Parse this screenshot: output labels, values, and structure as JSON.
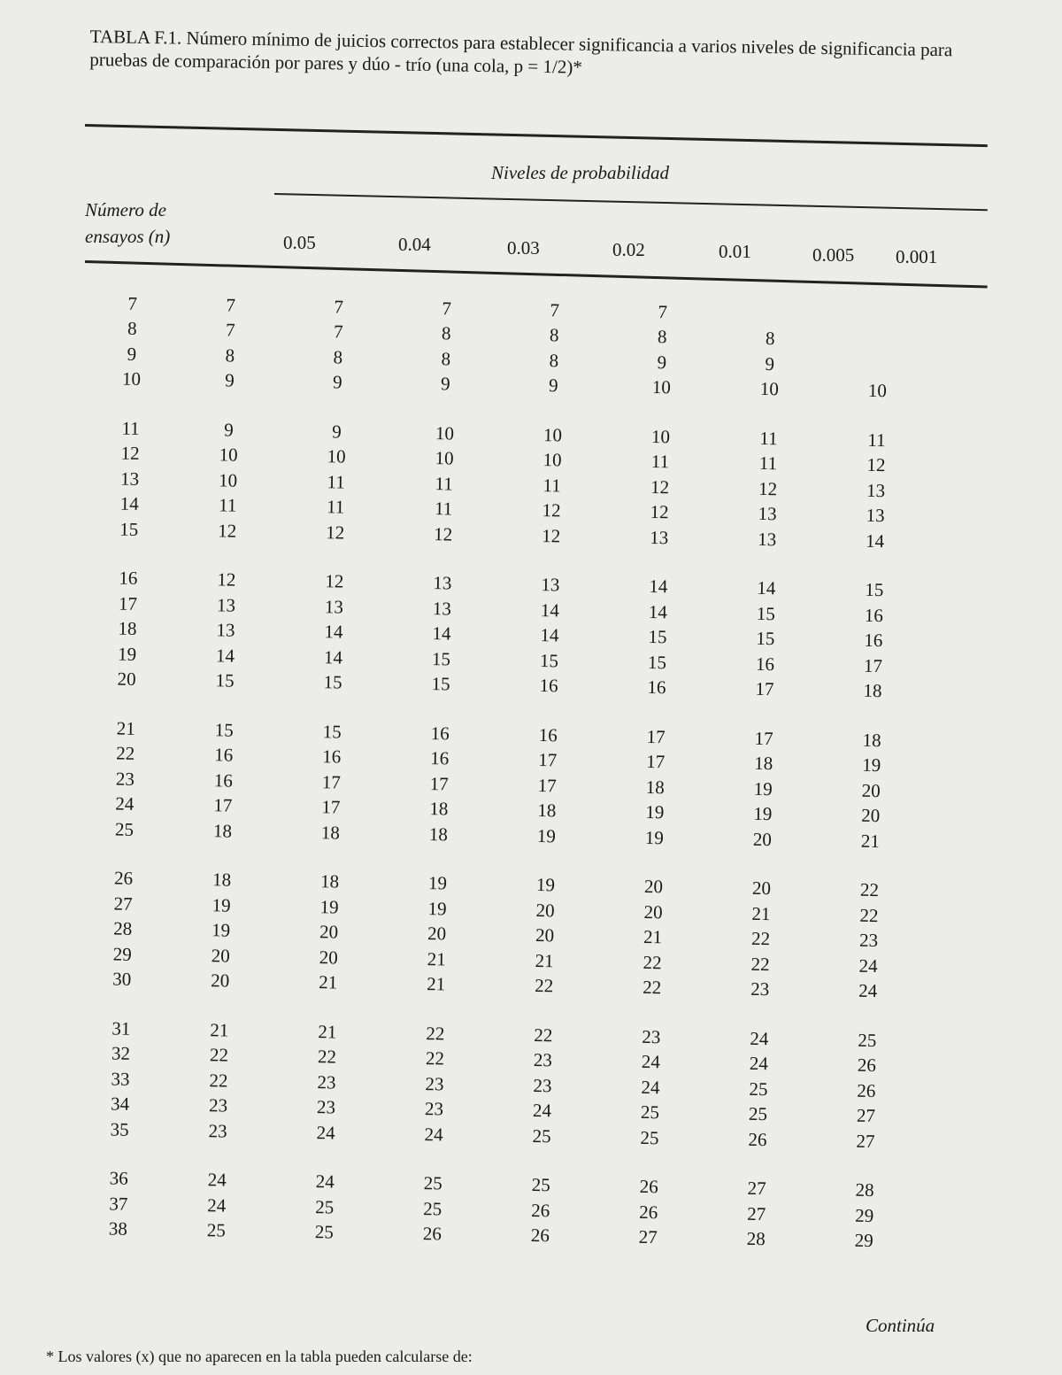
{
  "title": "TABLA F.1. Número mínimo de juicios correctos para establecer significancia a varios niveles de significancia para pruebas de comparación por pares y dúo - trío (una cola, p = 1/2)*",
  "table": {
    "group_header": "Niveles de probabilidad",
    "row_header": "Número de ensayos (n)",
    "columns": [
      "0.05",
      "0.04",
      "0.03",
      "0.02",
      "0.01",
      "0.005",
      "0.001"
    ],
    "rows": [
      [
        "7",
        "7",
        "7",
        "7",
        "7",
        "7",
        "",
        ""
      ],
      [
        "8",
        "7",
        "7",
        "8",
        "8",
        "8",
        "8",
        ""
      ],
      [
        "9",
        "8",
        "8",
        "8",
        "8",
        "9",
        "9",
        ""
      ],
      [
        "10",
        "9",
        "9",
        "9",
        "9",
        "10",
        "10",
        "10"
      ],
      [
        "11",
        "9",
        "9",
        "10",
        "10",
        "10",
        "11",
        "11"
      ],
      [
        "12",
        "10",
        "10",
        "10",
        "10",
        "11",
        "11",
        "12"
      ],
      [
        "13",
        "10",
        "11",
        "11",
        "11",
        "12",
        "12",
        "13"
      ],
      [
        "14",
        "11",
        "11",
        "11",
        "12",
        "12",
        "13",
        "13"
      ],
      [
        "15",
        "12",
        "12",
        "12",
        "12",
        "13",
        "13",
        "14"
      ],
      [
        "16",
        "12",
        "12",
        "13",
        "13",
        "14",
        "14",
        "15"
      ],
      [
        "17",
        "13",
        "13",
        "13",
        "14",
        "14",
        "15",
        "16"
      ],
      [
        "18",
        "13",
        "14",
        "14",
        "14",
        "15",
        "15",
        "16"
      ],
      [
        "19",
        "14",
        "14",
        "15",
        "15",
        "15",
        "16",
        "17"
      ],
      [
        "20",
        "15",
        "15",
        "15",
        "16",
        "16",
        "17",
        "18"
      ],
      [
        "21",
        "15",
        "15",
        "16",
        "16",
        "17",
        "17",
        "18"
      ],
      [
        "22",
        "16",
        "16",
        "16",
        "17",
        "17",
        "18",
        "19"
      ],
      [
        "23",
        "16",
        "17",
        "17",
        "17",
        "18",
        "19",
        "20"
      ],
      [
        "24",
        "17",
        "17",
        "18",
        "18",
        "19",
        "19",
        "20"
      ],
      [
        "25",
        "18",
        "18",
        "18",
        "19",
        "19",
        "20",
        "21"
      ],
      [
        "26",
        "18",
        "18",
        "19",
        "19",
        "20",
        "20",
        "22"
      ],
      [
        "27",
        "19",
        "19",
        "19",
        "20",
        "20",
        "21",
        "22"
      ],
      [
        "28",
        "19",
        "20",
        "20",
        "20",
        "21",
        "22",
        "23"
      ],
      [
        "29",
        "20",
        "20",
        "21",
        "21",
        "22",
        "22",
        "24"
      ],
      [
        "30",
        "20",
        "21",
        "21",
        "22",
        "22",
        "23",
        "24"
      ],
      [
        "31",
        "21",
        "21",
        "22",
        "22",
        "23",
        "24",
        "25"
      ],
      [
        "32",
        "22",
        "22",
        "22",
        "23",
        "24",
        "24",
        "26"
      ],
      [
        "33",
        "22",
        "23",
        "23",
        "23",
        "24",
        "25",
        "26"
      ],
      [
        "34",
        "23",
        "23",
        "23",
        "24",
        "25",
        "25",
        "27"
      ],
      [
        "35",
        "23",
        "24",
        "24",
        "25",
        "25",
        "26",
        "27"
      ],
      [
        "36",
        "24",
        "24",
        "25",
        "25",
        "26",
        "27",
        "28"
      ],
      [
        "37",
        "24",
        "25",
        "25",
        "26",
        "26",
        "27",
        "29"
      ],
      [
        "38",
        "25",
        "25",
        "26",
        "26",
        "27",
        "28",
        "29"
      ]
    ]
  },
  "continues": "Continúa",
  "footnote": "* Los valores (x) que no aparecen en la tabla pueden calcularse de:"
}
